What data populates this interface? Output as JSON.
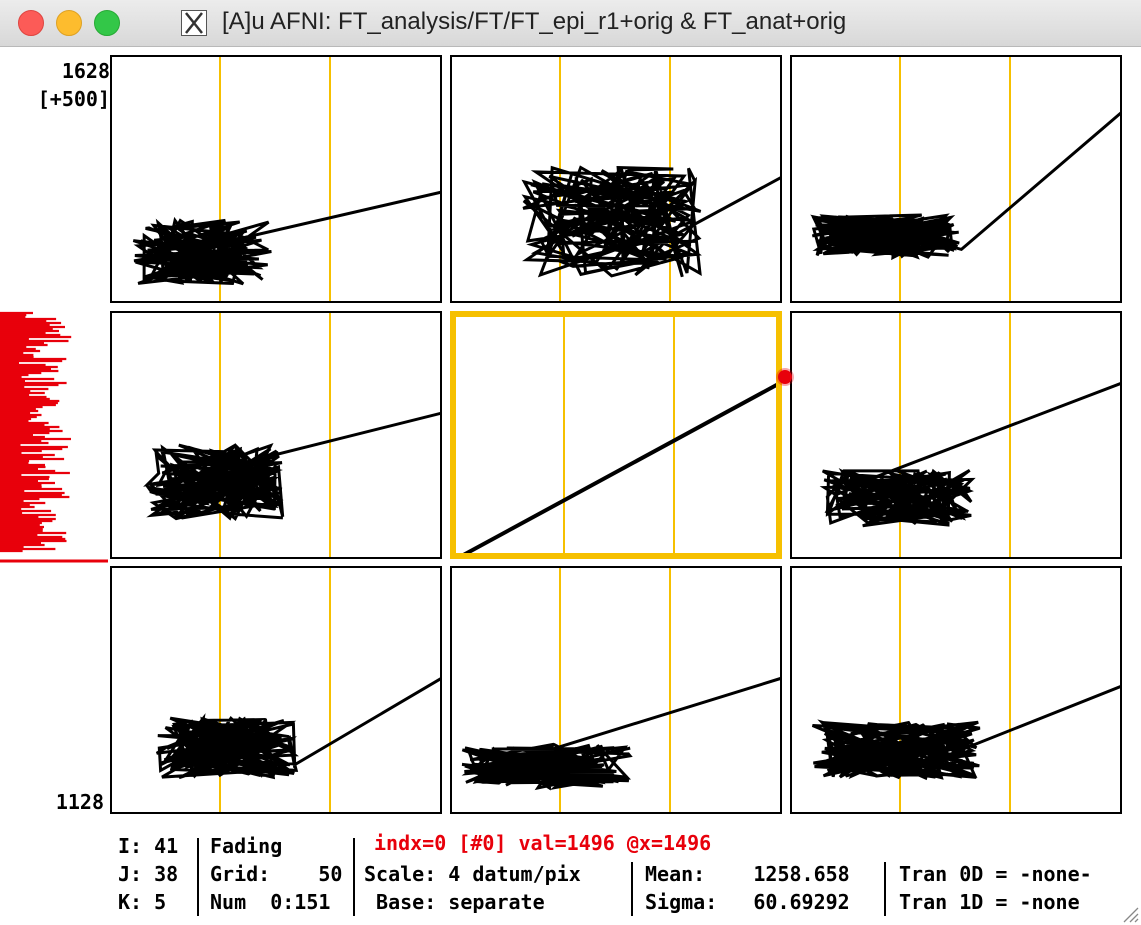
{
  "window": {
    "title": "[A]u AFNI: FT_analysis/FT/FT_epi_r1+orig & FT_anat+orig",
    "x_icon_glyph": "X"
  },
  "graph": {
    "y_top_label": "1628",
    "y_scale_label": "[+500]",
    "y_bottom_label": "1128",
    "trace_color": "#000000",
    "marker_color": "#f6c000",
    "selection_color": "#f6c000",
    "sidebar_color": "#e8000b"
  },
  "status": {
    "i_label": "I: 41",
    "j_label": "J: 38",
    "k_label": "K: 5",
    "fading_label": "Fading",
    "grid_label": "Grid:    50",
    "num_label": "Num  0:151",
    "index_readout": "indx=0 [#0] val=1496 @x=1496",
    "scale_label": "Scale: 4 datum/pix",
    "base_label": " Base: separate",
    "mean_label": "Mean:    1258.658",
    "sigma_label": "Sigma:   60.69292",
    "tran0d_label": "Tran 0D = -none-",
    "tran1d_label": "Tran 1D = -none"
  }
}
